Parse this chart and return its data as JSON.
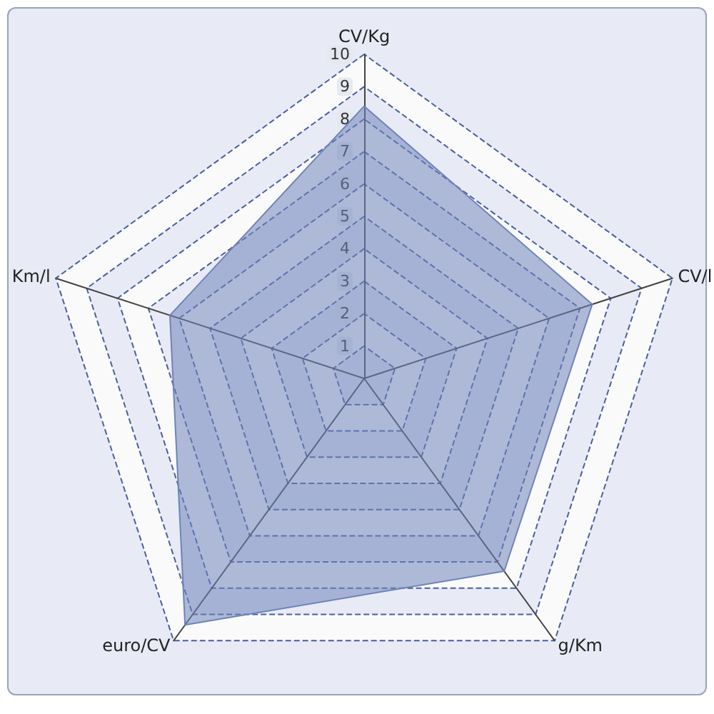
{
  "chart_data": {
    "type": "radar",
    "categories": [
      "CV/Kg",
      "CV/l",
      "g/Km",
      "euro/CV",
      "Km/l"
    ],
    "series": [
      {
        "color": "#6f84ba",
        "values": [
          8.4,
          7.4,
          7.35,
          9.4,
          6.3
        ]
      }
    ],
    "ylim": [
      0,
      10
    ],
    "yticks": [
      1,
      2,
      3,
      4,
      5,
      6,
      7,
      8,
      9,
      10
    ],
    "grid": true
  }
}
